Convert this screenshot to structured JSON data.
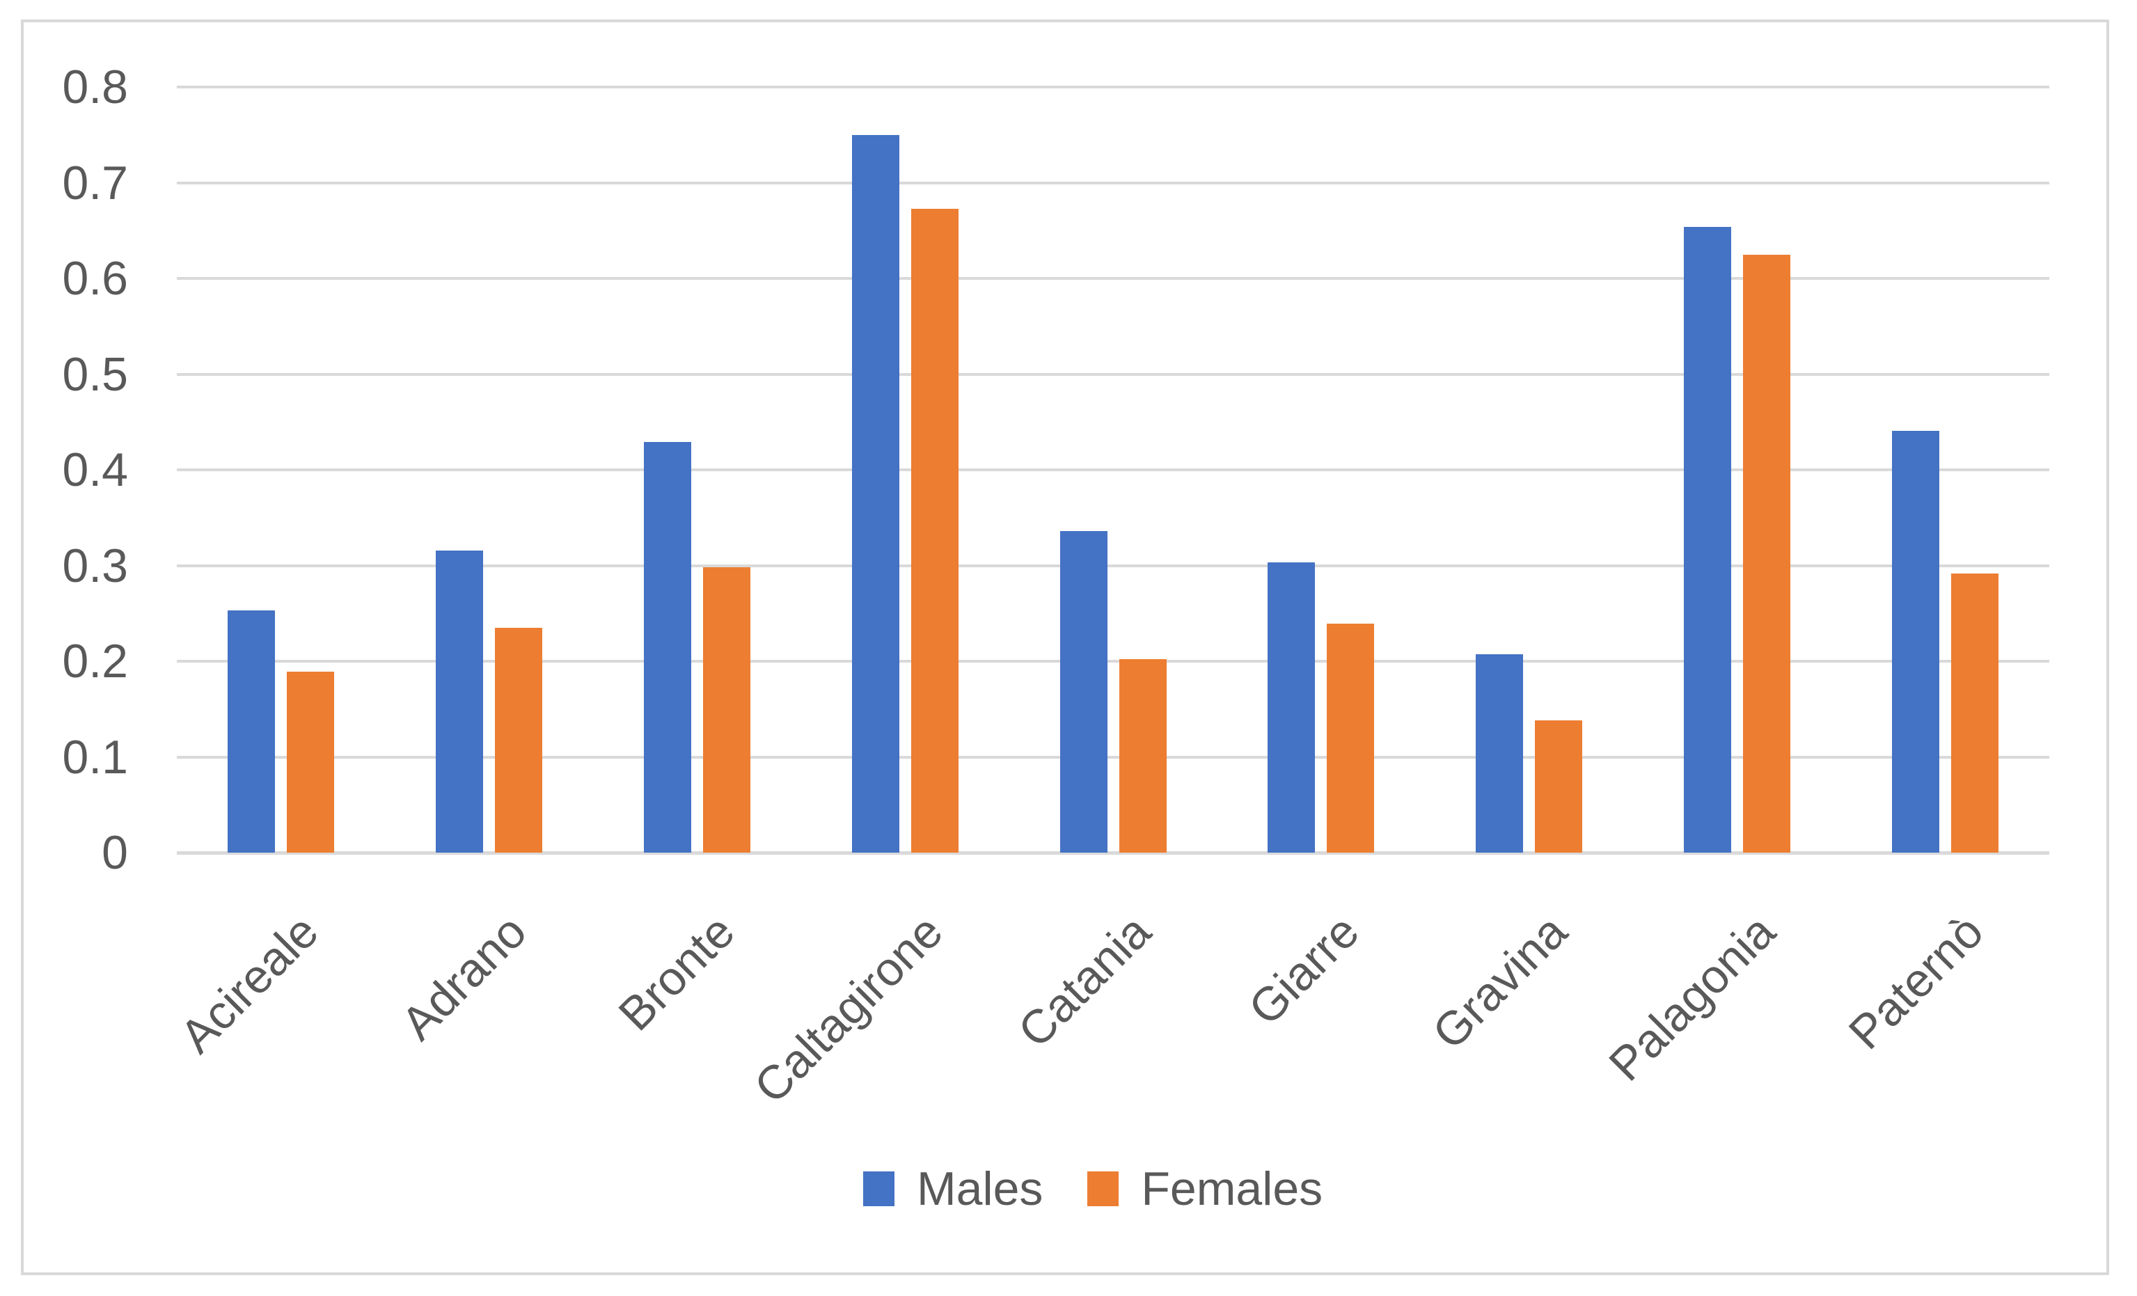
{
  "chart_data": {
    "type": "bar",
    "title": "",
    "xlabel": "",
    "ylabel": "",
    "categories": [
      "Acireale",
      "Adrano",
      "Bronte",
      "Caltagirone",
      "Catania",
      "Giarre",
      "Gravina",
      "Palagonia",
      "Paternò"
    ],
    "series": [
      {
        "name": "Males",
        "color": "#4472C4",
        "values": [
          0.253,
          0.316,
          0.429,
          0.75,
          0.336,
          0.303,
          0.207,
          0.654,
          0.441
        ]
      },
      {
        "name": "Females",
        "color": "#ED7D31",
        "values": [
          0.189,
          0.235,
          0.298,
          0.673,
          0.202,
          0.239,
          0.138,
          0.625,
          0.292
        ]
      }
    ],
    "ylim": [
      0,
      0.8
    ],
    "y_tick_labels": [
      "0",
      "0.1",
      "0.2",
      "0.3",
      "0.4",
      "0.5",
      "0.6",
      "0.7",
      "0.8"
    ],
    "grid": "horizontal",
    "legend_position": "bottom",
    "colors": {
      "gridline": "#D9D9D9",
      "axis_line": "#D9D9D9",
      "tick_text": "#595959",
      "chart_border": "#D9D9D9",
      "background": "#FFFFFF"
    }
  }
}
